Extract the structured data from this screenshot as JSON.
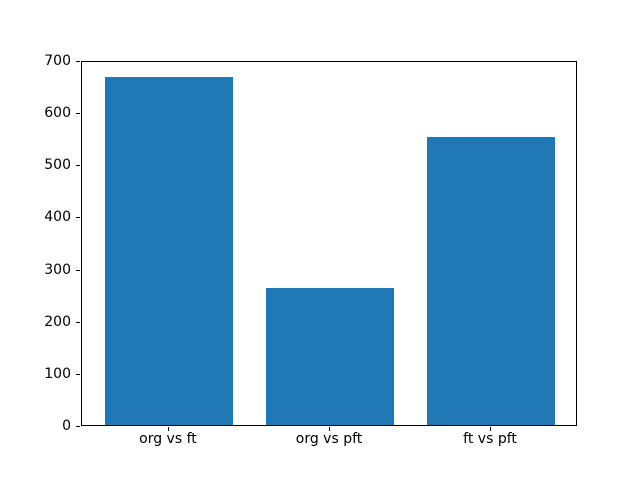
{
  "figure": {
    "background": "#ffffff",
    "spine_color": "#000000",
    "tick_color": "#000000",
    "text_color": "#000000"
  },
  "chart_data": {
    "type": "bar",
    "title": "",
    "xlabel": "",
    "ylabel": "",
    "categories": [
      "org vs ft",
      "org vs pft",
      "ft vs pft"
    ],
    "values": [
      670,
      265,
      555
    ],
    "bar_color": "#1f77b4",
    "ylim": [
      0,
      700
    ],
    "yticks": [
      0,
      100,
      200,
      300,
      400,
      500,
      600,
      700
    ],
    "bar_width_fraction": 0.8,
    "x_margin_fraction": 0.05,
    "grid": false,
    "legend": null
  }
}
